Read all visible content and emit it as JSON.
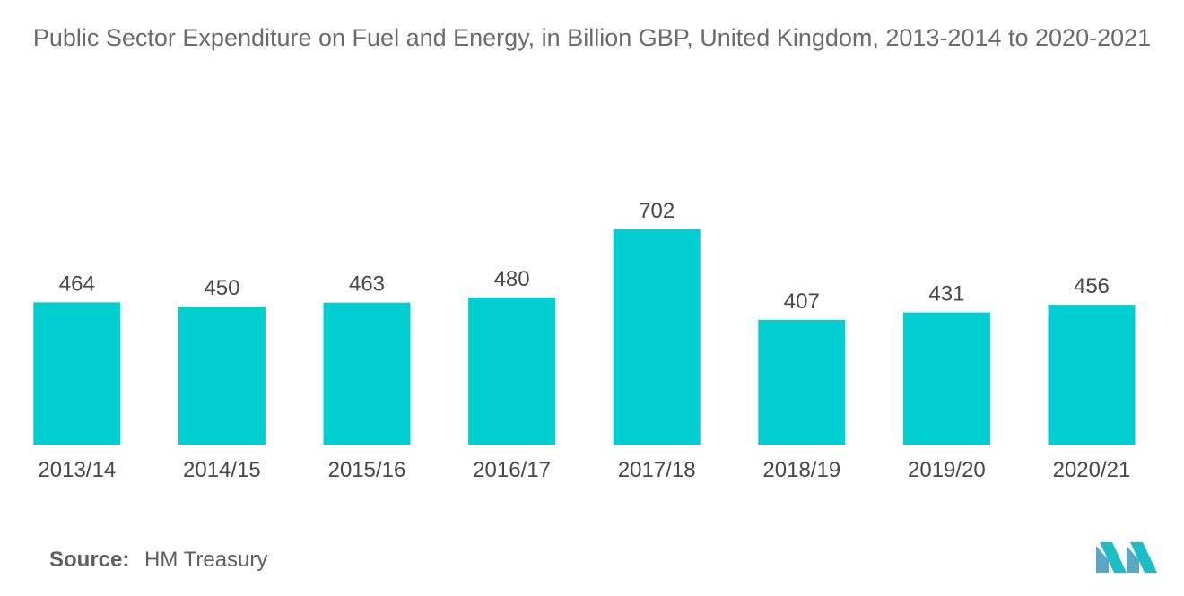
{
  "chart_data": {
    "type": "bar",
    "title": "Public Sector Expenditure on Fuel and Energy, in Billion GBP, United Kingdom, 2013-2014 to 2020-2021",
    "categories": [
      "2013/14",
      "2014/15",
      "2015/16",
      "2016/17",
      "2017/18",
      "2018/19",
      "2019/20",
      "2020/21"
    ],
    "values": [
      464,
      450,
      463,
      480,
      702,
      407,
      431,
      456
    ],
    "xlabel": "",
    "ylabel": "",
    "ylim": [
      0,
      720
    ],
    "grid": false,
    "legend": "none",
    "data_labels": true,
    "bar_color": "#00CED1"
  },
  "source": {
    "label": "Source:",
    "value": "HM Treasury"
  },
  "logo": {
    "icon": "mordor-intelligence-logo",
    "colors": [
      "#5aa6c5",
      "#1bbec4",
      "#25418f"
    ]
  }
}
